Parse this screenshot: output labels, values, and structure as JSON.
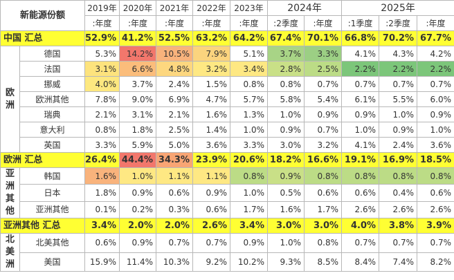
{
  "header": {
    "title": "新能源份额",
    "years": [
      {
        "label": "2019年",
        "span": 1
      },
      {
        "label": "2020年",
        "span": 1
      },
      {
        "label": "2021年",
        "span": 1
      },
      {
        "label": "2022年",
        "span": 1
      },
      {
        "label": "2023年",
        "span": 1
      },
      {
        "label": "2024年",
        "span": 2
      },
      {
        "label": "2025年",
        "span": 3
      }
    ],
    "subheaders": [
      ":年度",
      ":年度",
      ":年度",
      ":年度",
      ":年度",
      ":2季度",
      ":年度",
      ":1季度",
      ":2季度",
      ":年度"
    ]
  },
  "rows": [
    {
      "type": "total",
      "label": "中国 汇总",
      "values": [
        "52.9%",
        "41.2%",
        "52.5%",
        "63.2%",
        "64.2%",
        "67.4%",
        "70.1%",
        "66.8%",
        "70.2%",
        "67.7%"
      ],
      "colors": [
        "#ffff33",
        "#ffff33",
        "#ffff33",
        "#ffff33",
        "#ffff33",
        "#ffff33",
        "#ffff33",
        "#ffff33",
        "#ffff33",
        "#ffff33"
      ]
    },
    {
      "type": "country",
      "region": "欧洲",
      "region_rows": 7,
      "label": "德国",
      "values": [
        "5.3%",
        "14.2%",
        "10.5%",
        "7.9%",
        "5.1%",
        "3.7%",
        "3.3%",
        "4.1%",
        "4.3%",
        "4.2%"
      ],
      "colors": [
        "#ffffff",
        "#f2776c",
        "#f8b37c",
        "#fbd47e",
        "#ffffff",
        "#a8d486",
        "#9ccf84",
        "#ffffff",
        "#ffffff",
        "#ffffff"
      ]
    },
    {
      "type": "country",
      "label": "法国",
      "values": [
        "3.1%",
        "6.6%",
        "4.8%",
        "3.2%",
        "3.4%",
        "2.8%",
        "2.5%",
        "2.2%",
        "2.2%",
        "2.2%"
      ],
      "colors": [
        "#fde37d",
        "#fbbd7b",
        "#fdd77f",
        "#fee883",
        "#fee883",
        "#c9e087",
        "#bcdc86",
        "#7cc67a",
        "#7cc67a",
        "#7cc67a"
      ]
    },
    {
      "type": "country",
      "label": "挪威",
      "values": [
        "4.0%",
        "3.7%",
        "2.4%",
        "1.5%",
        "0.8%",
        "0.8%",
        "0.7%",
        "0.7%",
        "0.7%",
        "0.7%"
      ],
      "colors": [
        "#fde880",
        "#ffffff",
        "#ffffff",
        "#ffffff",
        "#ffffff",
        "#ffffff",
        "#ffffff",
        "#ffffff",
        "#ffffff",
        "#ffffff"
      ]
    },
    {
      "type": "country",
      "label": "欧洲其他",
      "values": [
        "7.8%",
        "9.0%",
        "6.9%",
        "4.7%",
        "5.7%",
        "5.8%",
        "5.4%",
        "6.1%",
        "5.5%",
        "6.0%"
      ],
      "colors": [
        "#ffffff",
        "#ffffff",
        "#ffffff",
        "#ffffff",
        "#ffffff",
        "#ffffff",
        "#ffffff",
        "#ffffff",
        "#ffffff",
        "#ffffff"
      ]
    },
    {
      "type": "country",
      "label": "瑞典",
      "values": [
        "2.1%",
        "3.1%",
        "2.1%",
        "1.6%",
        "1.3%",
        "1.0%",
        "0.9%",
        "0.9%",
        "1.0%",
        "0.9%"
      ],
      "colors": [
        "#ffffff",
        "#ffffff",
        "#ffffff",
        "#ffffff",
        "#ffffff",
        "#ffffff",
        "#ffffff",
        "#ffffff",
        "#ffffff",
        "#ffffff"
      ]
    },
    {
      "type": "country",
      "label": "意大利",
      "values": [
        "0.8%",
        "1.8%",
        "2.5%",
        "1.4%",
        "1.0%",
        "0.9%",
        "0.7%",
        "1.0%",
        "0.9%",
        "1.0%"
      ],
      "colors": [
        "#ffffff",
        "#ffffff",
        "#ffffff",
        "#ffffff",
        "#ffffff",
        "#ffffff",
        "#ffffff",
        "#ffffff",
        "#ffffff",
        "#ffffff"
      ]
    },
    {
      "type": "country",
      "label": "英国",
      "values": [
        "3.3%",
        "5.9%",
        "5.0%",
        "3.6%",
        "3.3%",
        "3.0%",
        "3.2%",
        "4.1%",
        "2.4%",
        "3.6%"
      ],
      "colors": [
        "#ffffff",
        "#ffffff",
        "#ffffff",
        "#ffffff",
        "#ffffff",
        "#ffffff",
        "#ffffff",
        "#ffffff",
        "#ffffff",
        "#ffffff"
      ]
    },
    {
      "type": "total",
      "label": "欧洲 汇总",
      "values": [
        "26.4%",
        "44.4%",
        "34.3%",
        "23.9%",
        "20.6%",
        "18.2%",
        "16.6%",
        "19.1%",
        "16.9%",
        "18.5%"
      ],
      "colors": [
        "#ffff33",
        "#f2776c",
        "#f8a574",
        "#ffff33",
        "#ffff33",
        "#ffff33",
        "#ffff33",
        "#ffff33",
        "#ffff33",
        "#ffff33"
      ]
    },
    {
      "type": "country",
      "region": "亚洲其他",
      "region_rows": 3,
      "label": "韩国",
      "values": [
        "1.6%",
        "1.0%",
        "1.1%",
        "1.1%",
        "0.8%",
        "0.9%",
        "0.8%",
        "0.8%",
        "0.8%",
        "0.8%"
      ],
      "colors": [
        "#f9b37c",
        "#fee883",
        "#fee883",
        "#fee883",
        "#bcdc86",
        "#c9e087",
        "#bcdc86",
        "#bcdc86",
        "#bcdc86",
        "#bcdc86"
      ]
    },
    {
      "type": "country",
      "label": "日本",
      "values": [
        "1.8%",
        "0.9%",
        "0.6%",
        "0.9%",
        "1.0%",
        "0.5%",
        "0.6%",
        "0.6%",
        "0.4%",
        "0.6%"
      ],
      "colors": [
        "#ffffff",
        "#ffffff",
        "#ffffff",
        "#ffffff",
        "#ffffff",
        "#ffffff",
        "#ffffff",
        "#ffffff",
        "#ffffff",
        "#ffffff"
      ]
    },
    {
      "type": "country",
      "label": "亚洲其他",
      "values": [
        "0.1%",
        "0.2%",
        "0.3%",
        "0.6%",
        "1.7%",
        "1.6%",
        "1.7%",
        "2.6%",
        "2.6%",
        "2.6%"
      ],
      "colors": [
        "#ffffff",
        "#ffffff",
        "#ffffff",
        "#ffffff",
        "#ffffff",
        "#ffffff",
        "#ffffff",
        "#ffffff",
        "#ffffff",
        "#ffffff"
      ]
    },
    {
      "type": "total",
      "label": "亚洲其他 汇总",
      "values": [
        "3.4%",
        "2.0%",
        "2.0%",
        "2.6%",
        "3.4%",
        "3.0%",
        "3.0%",
        "4.0%",
        "3.8%",
        "3.9%"
      ],
      "colors": [
        "#ffff33",
        "#ffff33",
        "#ffff33",
        "#ffff33",
        "#ffff33",
        "#ffff33",
        "#ffff33",
        "#ffff33",
        "#ffff33",
        "#ffff33"
      ]
    },
    {
      "type": "country",
      "region": "北美洲",
      "region_rows": 2,
      "label": "北美其他",
      "values": [
        "0.6%",
        "0.9%",
        "0.7%",
        "0.7%",
        "0.9%",
        "1.0%",
        "0.8%",
        "0.7%",
        "0.7%",
        "0.7%"
      ],
      "colors": [
        "#ffffff",
        "#ffffff",
        "#ffffff",
        "#ffffff",
        "#ffffff",
        "#ffffff",
        "#ffffff",
        "#ffffff",
        "#ffffff",
        "#ffffff"
      ]
    },
    {
      "type": "country",
      "label": "美国",
      "values": [
        "15.9%",
        "11.4%",
        "10.3%",
        "9.2%",
        "10.2%",
        "9.3%",
        "8.5%",
        "8.4%",
        "7.4%",
        "8.2%"
      ],
      "colors": [
        "#ffffff",
        "#ffffff",
        "#ffffff",
        "#ffffff",
        "#ffffff",
        "#ffffff",
        "#ffffff",
        "#ffffff",
        "#ffffff",
        "#ffffff"
      ]
    }
  ]
}
